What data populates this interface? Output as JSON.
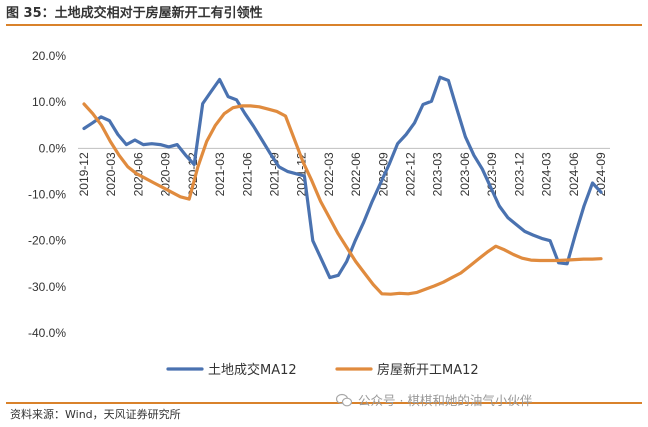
{
  "title": "图 35：土地成交相对于房屋新开工有引领性",
  "source": "资料来源：Wind，天风证券研究所",
  "watermark": "公众号 · 棋棋和她的油气小伙伴",
  "colors": {
    "accent": "#d9822b",
    "series1": "#4a72b0",
    "series2": "#e08b3e"
  },
  "chart_data": {
    "type": "line",
    "yticks": [
      "20.0%",
      "10.0%",
      "0.0%",
      "-10.0%",
      "-20.0%",
      "-30.0%",
      "-40.0%"
    ],
    "ylim": [
      -40,
      20
    ],
    "xticks": [
      "2019-12",
      "2020-03",
      "2020-06",
      "2020-09",
      "2020-12",
      "2021-03",
      "2021-06",
      "2021-09",
      "2021-12",
      "2022-03",
      "2022-06",
      "2022-09",
      "2022-12",
      "2023-03",
      "2023-06",
      "2023-09",
      "2023-12",
      "2024-03",
      "2024-06",
      "2024-09"
    ],
    "legend_position": "bottom",
    "grid": false,
    "series": [
      {
        "name": "土地成交MA12",
        "values": [
          4.3,
          5.5,
          6.8,
          6.0,
          3.0,
          0.8,
          1.8,
          0.8,
          1.0,
          0.8,
          0.3,
          0.8,
          -1.5,
          -3.5,
          9.7,
          12.3,
          14.9,
          11.2,
          10.5,
          7.5,
          4.8,
          1.8,
          -1.2,
          -4.0,
          -5.0,
          -5.5,
          -6.0,
          -20.0,
          -24.0,
          -28.0,
          -27.5,
          -24.5,
          -20.0,
          -16.0,
          -11.5,
          -7.5,
          -3.5,
          1.0,
          3.0,
          5.5,
          9.5,
          10.2,
          15.4,
          14.7,
          8.5,
          2.5,
          -1.5,
          -4.5,
          -8.5,
          -12.5,
          -15.0,
          -16.5,
          -18.0,
          -18.8,
          -19.5,
          -20.0,
          -24.8,
          -25.0,
          -18.5,
          -12.5,
          -7.5,
          -9.5
        ]
      },
      {
        "name": "房屋新开工MA12",
        "values": [
          9.6,
          7.5,
          5.0,
          1.5,
          -1.5,
          -4.0,
          -5.5,
          -6.5,
          -7.5,
          -8.5,
          -9.5,
          -10.5,
          -11.0,
          -4.0,
          1.5,
          5.0,
          7.5,
          8.8,
          9.2,
          9.2,
          9.0,
          8.5,
          8.0,
          7.0,
          2.0,
          -3.0,
          -7.0,
          -11.5,
          -15.0,
          -18.5,
          -21.5,
          -24.5,
          -27.0,
          -29.5,
          -31.5,
          -31.6,
          -31.4,
          -31.5,
          -31.2,
          -30.5,
          -29.8,
          -29.0,
          -28.0,
          -27.0,
          -25.5,
          -24.0,
          -22.5,
          -21.2,
          -22.0,
          -23.0,
          -23.8,
          -24.2,
          -24.3,
          -24.3,
          -24.3,
          -24.2,
          -24.1,
          -24.0,
          -24.0,
          -23.9
        ]
      }
    ]
  }
}
